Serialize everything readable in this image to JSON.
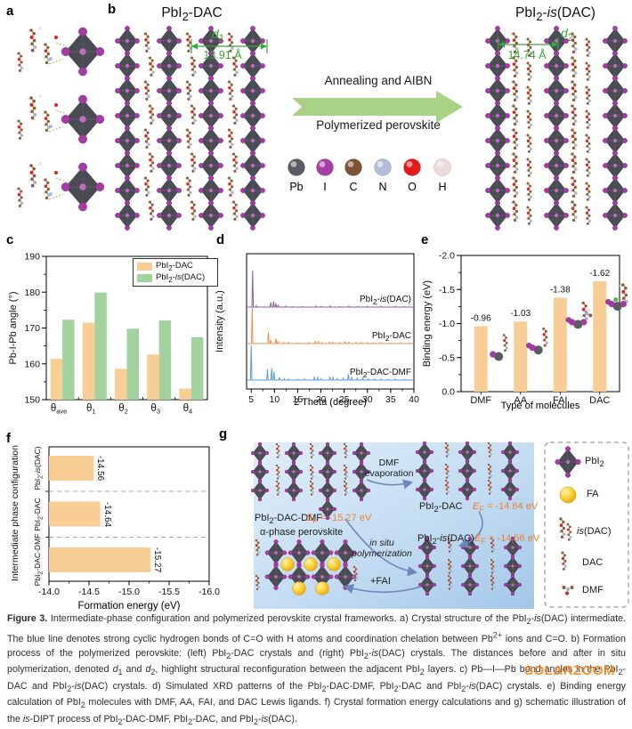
{
  "figure": {
    "panel_labels": {
      "a": "a",
      "b": "b",
      "c": "c",
      "d": "d",
      "e": "e",
      "f": "f",
      "g": "g"
    },
    "panel_b": {
      "left_title_html": "PbI<sub>2</sub>-DAC",
      "right_title_html": "PbI<sub>2</sub>-<i>is</i>(DAC)",
      "d1_label_html": "<i>d</i><sub>1</sub>",
      "d1_value": "13.91 Å",
      "d2_label_html": "<i>d</i><sub>2</sub>",
      "d2_value": "14.74 Å",
      "arrow_top_text": "Annealing and AIBN",
      "arrow_bottom_text": "Polymerized perovskite",
      "atom_legend": [
        {
          "symbol": "Pb",
          "color": "#5b5b64"
        },
        {
          "symbol": "I",
          "color": "#a43fa4"
        },
        {
          "symbol": "C",
          "color": "#7b5233"
        },
        {
          "symbol": "N",
          "color": "#b3bdd9"
        },
        {
          "symbol": "O",
          "color": "#e3191c"
        },
        {
          "symbol": "H",
          "color": "#eedcdc"
        }
      ]
    },
    "panel_g": {
      "labels": {
        "dmf_evap_html": "DMF<br>evaporation",
        "pbi2_dac_dmf_html": "PbI<sub>2</sub>-DAC-DMF",
        "ef1_html": "<i>E</i><sub>F</sub> = -15.27 eV",
        "alpha_html": "α-phase perovskite",
        "insitu_html": "<i>in situ</i><br>polymerization",
        "fai_html": "+FAI",
        "pbi2_dac_html": "PbI<sub>2</sub>-DAC",
        "ef2_html": "<i>E</i><sub>F</sub> = -14.64 eV",
        "pbi2_isdac_html": "PbI<sub>2</sub>-<i>is</i>(DAC)",
        "ef3_html": "<i>E</i><sub>F</sub> = -14.56 eV"
      },
      "legend_items": [
        {
          "icon": "pbi2-octahedron",
          "label_html": "PbI<sub>2</sub>"
        },
        {
          "icon": "fa-sphere",
          "label_html": "FA"
        },
        {
          "icon": "isdac-molecule",
          "label_html": "<i>is</i>(DAC)"
        },
        {
          "icon": "dac-molecule",
          "label_html": "DAC"
        },
        {
          "icon": "dmf-molecule",
          "label_html": "DMF"
        }
      ]
    }
  },
  "chart_data": [
    {
      "id": "c",
      "type": "bar",
      "title": "",
      "ylabel": "Pb-I-Pb angle (°)",
      "ylim": [
        150,
        190
      ],
      "yticks": [
        150,
        160,
        170,
        180,
        190
      ],
      "categories": [
        "θ_ave",
        "θ_1",
        "θ_2",
        "θ_3",
        "θ_4"
      ],
      "legend_position": "top-right",
      "series": [
        {
          "name_html": "PbI<sub>2</sub>-DAC",
          "color": "#f9cd96",
          "values": [
            161.4,
            171.5,
            158.6,
            162.6,
            153.1
          ]
        },
        {
          "name_html": "PbI<sub>2</sub>-<i>is</i>(DAC)",
          "color": "#a2d39e",
          "values": [
            172.3,
            179.9,
            169.8,
            172.1,
            167.4
          ]
        }
      ]
    },
    {
      "id": "d",
      "type": "line",
      "title": "",
      "xlabel": "2 Theta (degree)",
      "ylabel": "Intensity (a.u.)",
      "xlim": [
        4,
        40
      ],
      "xticks": [
        5,
        10,
        15,
        20,
        25,
        30,
        35,
        40
      ],
      "series": [
        {
          "name_html": "PbI<sub>2</sub>-<i>is</i>(DAC)",
          "color": "#8e5ba6",
          "offset": 2,
          "peaks": [
            [
              5.3,
              1.0
            ],
            [
              6.1,
              0.04
            ],
            [
              9.2,
              0.13
            ],
            [
              9.8,
              0.15
            ],
            [
              10.3,
              0.1
            ],
            [
              10.8,
              0.05
            ],
            [
              12.5,
              0.03
            ],
            [
              14,
              0.02
            ],
            [
              16,
              0.02
            ],
            [
              19,
              0.03
            ],
            [
              20,
              0.02
            ],
            [
              22,
              0.03
            ],
            [
              24,
              0.02
            ],
            [
              26,
              0.03
            ],
            [
              28,
              0.02
            ],
            [
              30,
              0.02
            ],
            [
              33,
              0.02
            ],
            [
              36,
              0.02
            ],
            [
              38,
              0.02
            ]
          ]
        },
        {
          "name_html": "PbI<sub>2</sub>-DAC",
          "color": "#f0914b",
          "offset": 1,
          "peaks": [
            [
              5.2,
              1.0
            ],
            [
              8.7,
              0.32
            ],
            [
              9.2,
              0.1
            ],
            [
              10.3,
              0.14
            ],
            [
              10.7,
              0.06
            ],
            [
              12,
              0.03
            ],
            [
              13,
              0.04
            ],
            [
              15,
              0.02
            ],
            [
              17.4,
              0.03
            ],
            [
              18.8,
              0.06
            ],
            [
              19.4,
              0.05
            ],
            [
              20.2,
              0.04
            ],
            [
              21.8,
              0.05
            ],
            [
              22.5,
              0.04
            ],
            [
              24,
              0.03
            ],
            [
              25.2,
              0.05
            ],
            [
              26,
              0.04
            ],
            [
              27.5,
              0.03
            ],
            [
              28.6,
              0.04
            ],
            [
              30,
              0.03
            ],
            [
              31.5,
              0.02
            ],
            [
              33,
              0.03
            ],
            [
              35,
              0.02
            ],
            [
              37,
              0.02
            ],
            [
              39,
              0.02
            ]
          ]
        },
        {
          "name_html": "PbI<sub>2</sub>-DAC-DMF",
          "color": "#5c9bd5",
          "offset": 0,
          "peaks": [
            [
              5.0,
              0.95
            ],
            [
              8.5,
              0.3
            ],
            [
              9.4,
              0.33
            ],
            [
              9.9,
              0.24
            ],
            [
              11.1,
              0.08
            ],
            [
              12.1,
              0.04
            ],
            [
              13,
              0.03
            ],
            [
              15,
              0.02
            ],
            [
              16.5,
              0.03
            ],
            [
              18.6,
              0.09
            ],
            [
              19.3,
              0.07
            ],
            [
              20,
              0.04
            ],
            [
              21.9,
              0.09
            ],
            [
              22.6,
              0.07
            ],
            [
              23.5,
              0.04
            ],
            [
              24.8,
              0.05
            ],
            [
              25.9,
              0.16
            ],
            [
              26.6,
              0.08
            ],
            [
              27.8,
              0.05
            ],
            [
              29,
              0.06
            ],
            [
              30.2,
              0.04
            ],
            [
              31.5,
              0.03
            ],
            [
              33,
              0.03
            ],
            [
              34.5,
              0.02
            ],
            [
              36,
              0.03
            ],
            [
              38,
              0.02
            ]
          ]
        }
      ]
    },
    {
      "id": "e",
      "type": "bar",
      "title": "",
      "xlabel": "Type of molecules",
      "ylabel": "Binding energy (eV)",
      "inverted_axis": true,
      "ylim": [
        0,
        -2.0
      ],
      "yticks": [
        "-2.0",
        "-1.5",
        "-1.0",
        "-0.5",
        "0.0"
      ],
      "categories": [
        "DMF",
        "AA",
        "FAI",
        "DAC"
      ],
      "values": [
        -0.96,
        -1.03,
        -1.38,
        -1.62
      ],
      "value_labels": [
        "-0.96",
        "-1.03",
        "-1.38",
        "-1.62"
      ],
      "bar_color": "#f9cd96"
    },
    {
      "id": "f",
      "type": "bar-horizontal",
      "title": "",
      "xlabel": "Formation energy (eV)",
      "ylabel": "Intermediate phase configuration",
      "xlim": [
        -14.0,
        -16.0
      ],
      "xticks": [
        "-14.0",
        "-14.5",
        "-15.0",
        "-15.5",
        "-16.0"
      ],
      "categories_html": [
        "PbI<sub>2</sub>-<i>is</i>(DAC)",
        "PbI<sub>2</sub>-DAC",
        "PbI<sub>2</sub>-DAC-DMF"
      ],
      "values": [
        -14.56,
        -14.64,
        -15.27
      ],
      "value_labels": [
        "-14.56",
        "-14.64",
        "-15.27"
      ],
      "bar_color": "#f9cd96"
    }
  ],
  "caption": {
    "label": "Figure 3.",
    "text_html": " Intermediate-phase configuration and polymerized perovskite crystal frameworks. a) Crystal structure of the PbI<sub>2</sub>-<i>is</i>(DAC) intermediate. The blue line denotes strong cyclic hydrogen bonds of C=O with H atoms and coordination chelation between Pb<sup>2+</sup> ions and C=O. b) Formation process of the polymerized perovskite: (left) PbI<sub>2</sub>-DAC crystals and (right) PbI<sub>2</sub>-<i>is</i>(DAC) crystals. The distances before and after in situ polymerization, denoted <i>d</i><sub>1</sub> and <i>d</i><sub>2</sub>, highlight structural reconfiguration between the adjacent PbI<sub>2</sub> layers. c) Pb—I—Pb bond angles in the PbI<sub>2</sub>-DAC and PbI<sub>2</sub>-<i>is</i>(DAC) crystals. d) Simulated XRD patterns of the PbI<sub>2</sub>-DAC-DMF, PbI<sub>2</sub>-DAC and PbI<sub>2</sub>-<i>is</i>(DAC) crystals. e) Binding energy calculation of PbI<sub>2</sub> molecules with DMF, AA, FAI, and DAC Lewis ligands. f) Crystal formation energy calculations and g) schematic illustration of the <i>is</i>-DIPT process of PbI<sub>2</sub>-DAC-DMF, PbI<sub>2</sub>-DAC, and PbI<sub>2</sub>-<i>is</i>(DAC).",
    "watermark": "SOLARZOOM"
  },
  "watermark": "SOLARZOOM"
}
